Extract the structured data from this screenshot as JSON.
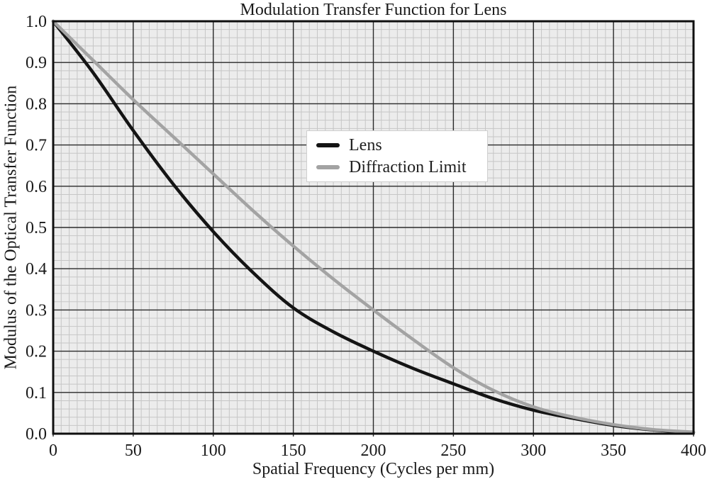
{
  "title": "Modulation Transfer Function for Lens",
  "legend": {
    "items": [
      {
        "label": "Lens",
        "color": "#141414"
      },
      {
        "label": "Diffraction Limit",
        "color": "#a3a3a3"
      }
    ]
  },
  "colors": {
    "plot_background": "#ececec",
    "minor_grid": "#c6c6c6",
    "major_grid": "#2b2b2b",
    "frame": "#0f0f0f",
    "lens_curve": "#141414",
    "diffraction_curve": "#a3a3a3",
    "text": "#1a1a1a"
  },
  "chart_data": {
    "type": "line",
    "title": "Modulation Transfer Function for Lens",
    "xlabel": "Spatial Frequency (Cycles per mm)",
    "ylabel": "Modulus of the Optical Transfer Function",
    "xlim": [
      0,
      400
    ],
    "ylim": [
      0.0,
      1.0
    ],
    "x_ticks": [
      0,
      50,
      100,
      150,
      200,
      250,
      300,
      350,
      400
    ],
    "y_ticks": [
      {
        "label": "1.0",
        "value": 1.0
      },
      {
        "label": "0.9",
        "value": 0.9
      },
      {
        "label": "0.8",
        "value": 0.8
      },
      {
        "label": "0.7",
        "value": 0.7
      },
      {
        "label": "0.6",
        "value": 0.6
      },
      {
        "label": "0.5",
        "value": 0.5
      },
      {
        "label": "0.4",
        "value": 0.4
      },
      {
        "label": "0.3",
        "value": 0.3
      },
      {
        "label": "0.2",
        "value": 0.2
      },
      {
        "label": "0.1",
        "value": 0.1
      },
      {
        "label": "0.0",
        "value": 0.0
      }
    ],
    "x_minor_step": 5,
    "y_minor_step": 0.02,
    "x_major_step": 50,
    "y_major_step": 0.1,
    "grid": true,
    "legend_position": "inside upper center",
    "x": [
      0,
      25,
      50,
      75,
      100,
      125,
      150,
      175,
      200,
      225,
      250,
      275,
      300,
      325,
      350,
      375,
      400
    ],
    "series": [
      {
        "name": "Lens",
        "color": "#141414",
        "values": [
          1.0,
          0.875,
          0.735,
          0.605,
          0.49,
          0.39,
          0.305,
          0.247,
          0.2,
          0.158,
          0.121,
          0.085,
          0.057,
          0.037,
          0.02,
          0.009,
          0.003
        ]
      },
      {
        "name": "Diffraction Limit",
        "color": "#a3a3a3",
        "values": [
          1.0,
          0.905,
          0.81,
          0.72,
          0.63,
          0.54,
          0.455,
          0.375,
          0.3,
          0.228,
          0.16,
          0.105,
          0.065,
          0.04,
          0.022,
          0.01,
          0.004
        ]
      }
    ]
  }
}
